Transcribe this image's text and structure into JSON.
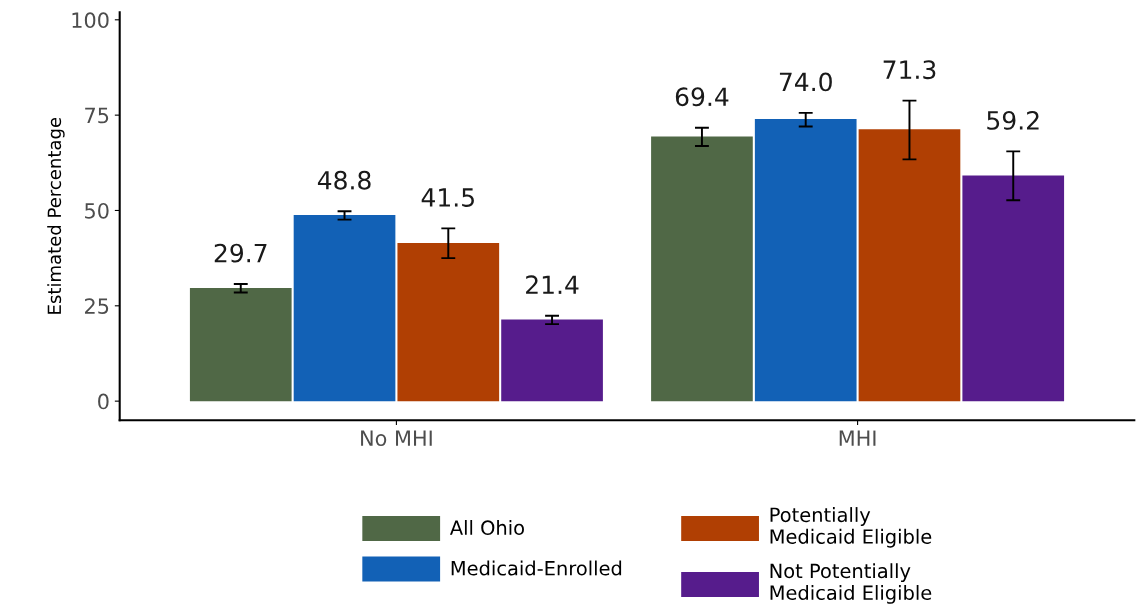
{
  "chart_data": {
    "type": "bar",
    "ylabel": "Estimated Percentage",
    "categories": [
      "No MHI",
      "MHI"
    ],
    "series": [
      {
        "name": "All Ohio",
        "color": "#506846",
        "values": [
          29.7,
          69.4
        ],
        "errors": [
          [
            28.5,
            30.7
          ],
          [
            66.9,
            71.7
          ]
        ],
        "value_labels": [
          "29.7",
          "69.4"
        ]
      },
      {
        "name": "Medicaid-Enrolled",
        "color": "#1261b6",
        "values": [
          48.8,
          74.0
        ],
        "errors": [
          [
            47.6,
            49.8
          ],
          [
            72.0,
            75.6
          ]
        ],
        "value_labels": [
          "48.8",
          "74.0"
        ]
      },
      {
        "name": "Potentially Medicaid Eligible",
        "color": "#b03f03",
        "values": [
          41.5,
          71.3
        ],
        "errors": [
          [
            37.5,
            45.3
          ],
          [
            63.4,
            78.8
          ]
        ],
        "value_labels": [
          "41.5",
          "71.3"
        ]
      },
      {
        "name": "Not Potentially Medicaid Eligible",
        "color": "#561c8c",
        "values": [
          21.4,
          59.2
        ],
        "errors": [
          [
            20.2,
            22.4
          ],
          [
            52.7,
            65.5
          ]
        ],
        "value_labels": [
          "21.4",
          "59.2"
        ]
      }
    ],
    "ylim": [
      -5,
      102
    ],
    "yticks": [
      0,
      25,
      50,
      75,
      100
    ],
    "grid": false,
    "legend": "bottom"
  }
}
